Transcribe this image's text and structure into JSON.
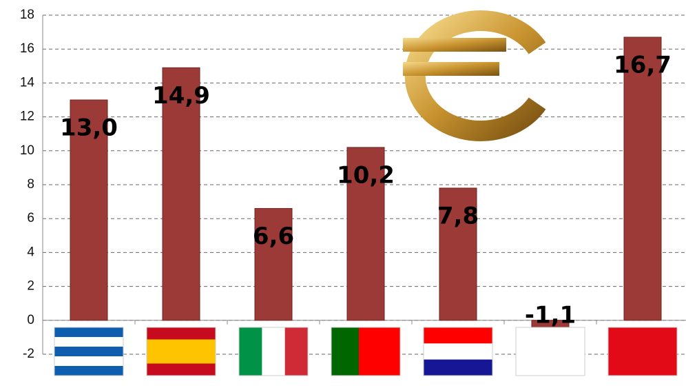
{
  "chart_data": {
    "type": "bar",
    "categories": [
      null,
      null,
      null,
      null,
      null,
      null,
      null
    ],
    "values": [
      13.0,
      14.9,
      6.6,
      10.2,
      7.8,
      -1.1,
      16.7
    ],
    "value_labels": [
      "13,0",
      "14,9",
      "6,6",
      "10,2",
      "7,8",
      "-1,1",
      "16,7"
    ],
    "color": "#9b3a36",
    "ylim": [
      -2,
      18
    ],
    "yticks": [
      -2,
      0,
      2,
      4,
      6,
      8,
      10,
      12,
      14,
      16,
      18
    ],
    "grid": true
  }
}
